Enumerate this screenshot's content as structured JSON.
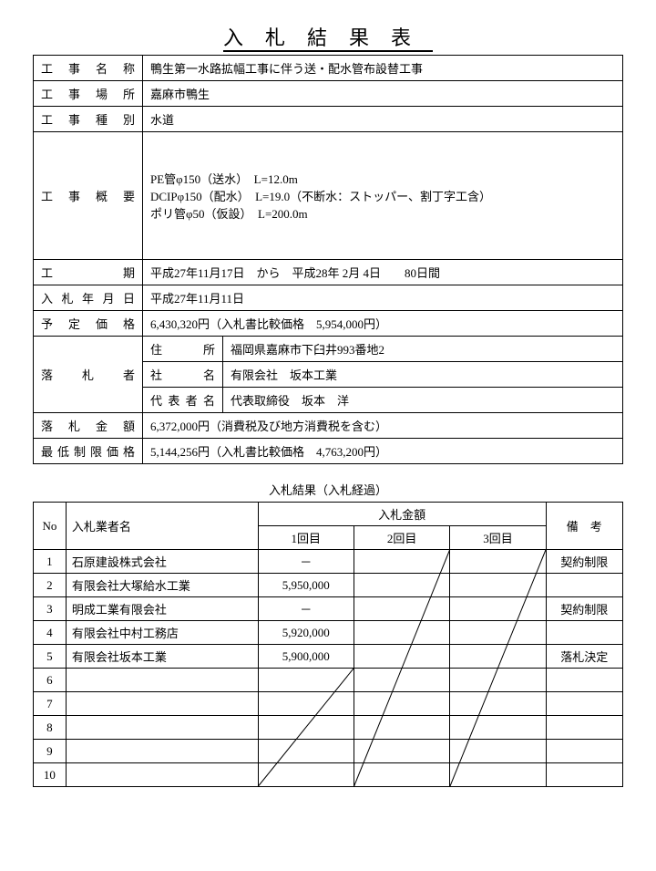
{
  "title": "入札結果表",
  "info": {
    "name_lbl": "工事名称",
    "name": "鴨生第一水路拡幅工事に伴う送・配水管布設替工事",
    "place_lbl": "工事場所",
    "place": "嘉麻市鴨生",
    "class_lbl": "工事種別",
    "class": "水道",
    "summary_lbl": "工事概要",
    "summary": "PE管φ150（送水）　L=12.0m\nDCIPφ150（配水）　L=19.0（不断水：ストッパー、割丁字工含）\nポリ管φ50（仮設）　L=200.0m",
    "period_lbl": "工　　期",
    "period": "平成27年11月17日　から　平成28年 2月 4日　　80日間",
    "biddate_lbl": "入札年月日",
    "biddate": "平成27年11月11日",
    "estprice_lbl": "予定価格",
    "estprice": "6,430,320円（入札書比較価格　5,954,000円）",
    "winner_lbl": "落札者",
    "addr_lbl": "住所",
    "addr": "福岡県嘉麻市下臼井993番地2",
    "corp_lbl": "社名",
    "corp": "有限会社　坂本工業",
    "rep_lbl": "代表者名",
    "rep": "代表取締役　坂本　洋",
    "winprice_lbl": "落札金額",
    "winprice": "6,372,000円（消費税及び地方消費税を含む）",
    "minprice_lbl": "最低制限価格",
    "minprice": "5,144,256円（入札書比較価格　4,763,200円）"
  },
  "section_title": "入札結果（入札経過）",
  "headers": {
    "no": "No",
    "bidder": "入札業者名",
    "amount": "入札金額",
    "r1": "1回目",
    "r2": "2回目",
    "r3": "3回目",
    "note": "備　考"
  },
  "rows": [
    {
      "no": "1",
      "name": "石原建設株式会社",
      "r1": "－",
      "r2": "",
      "r3": "",
      "note": "契約制限"
    },
    {
      "no": "2",
      "name": "有限会社大塚給水工業",
      "r1": "5,950,000",
      "r2": "",
      "r3": "",
      "note": ""
    },
    {
      "no": "3",
      "name": "明成工業有限会社",
      "r1": "－",
      "r2": "",
      "r3": "",
      "note": "契約制限"
    },
    {
      "no": "4",
      "name": "有限会社中村工務店",
      "r1": "5,920,000",
      "r2": "",
      "r3": "",
      "note": ""
    },
    {
      "no": "5",
      "name": "有限会社坂本工業",
      "r1": "5,900,000",
      "r2": "",
      "r3": "",
      "note": "落札決定"
    },
    {
      "no": "6",
      "name": "",
      "r1": "",
      "r2": "",
      "r3": "",
      "note": ""
    },
    {
      "no": "7",
      "name": "",
      "r1": "",
      "r2": "",
      "r3": "",
      "note": ""
    },
    {
      "no": "8",
      "name": "",
      "r1": "",
      "r2": "",
      "r3": "",
      "note": ""
    },
    {
      "no": "9",
      "name": "",
      "r1": "",
      "r2": "",
      "r3": "",
      "note": ""
    },
    {
      "no": "10",
      "name": "",
      "r1": "",
      "r2": "",
      "r3": "",
      "note": ""
    }
  ]
}
